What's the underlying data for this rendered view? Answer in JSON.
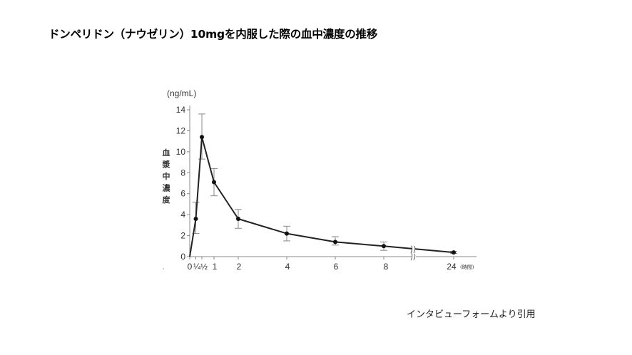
{
  "page": {
    "title": "ドンペリドン（ナウゼリン）10mgを内服した際の血中濃度の推移",
    "source_note": "インタビューフォームより引用"
  },
  "chart_data": {
    "type": "line",
    "title": "ドンペリドン（ナウゼリン）10mgを内服した際の血中濃度の推移",
    "xlabel": "(時間)",
    "ylabel": "血漿中濃度",
    "yunit": "(ng/mL)",
    "ylim": [
      0,
      14
    ],
    "yticks": [
      0,
      2,
      4,
      6,
      8,
      10,
      12,
      14
    ],
    "xticks": [
      "0",
      "1/4",
      "1/2",
      "1",
      "2",
      "4",
      "6",
      "8",
      "24"
    ],
    "x_axis_break": "between 8 and 24",
    "grid": false,
    "legend": null,
    "series": [
      {
        "name": "ドンペリドン 10mg",
        "x": [
          0,
          0.25,
          0.5,
          1,
          2,
          4,
          6,
          8,
          24
        ],
        "values": [
          0,
          3.6,
          11.4,
          7.1,
          3.6,
          2.2,
          1.4,
          1.0,
          0.4
        ],
        "error_low": [
          null,
          2.2,
          9.3,
          5.8,
          2.7,
          1.5,
          1.1,
          0.6,
          0.3
        ],
        "error_high": [
          null,
          5.2,
          13.6,
          8.4,
          4.5,
          2.9,
          1.9,
          1.4,
          0.5
        ]
      }
    ],
    "colors": {
      "line": "#222222",
      "marker": "#111111",
      "error_bar": "#888888",
      "axis": "#888888"
    }
  }
}
